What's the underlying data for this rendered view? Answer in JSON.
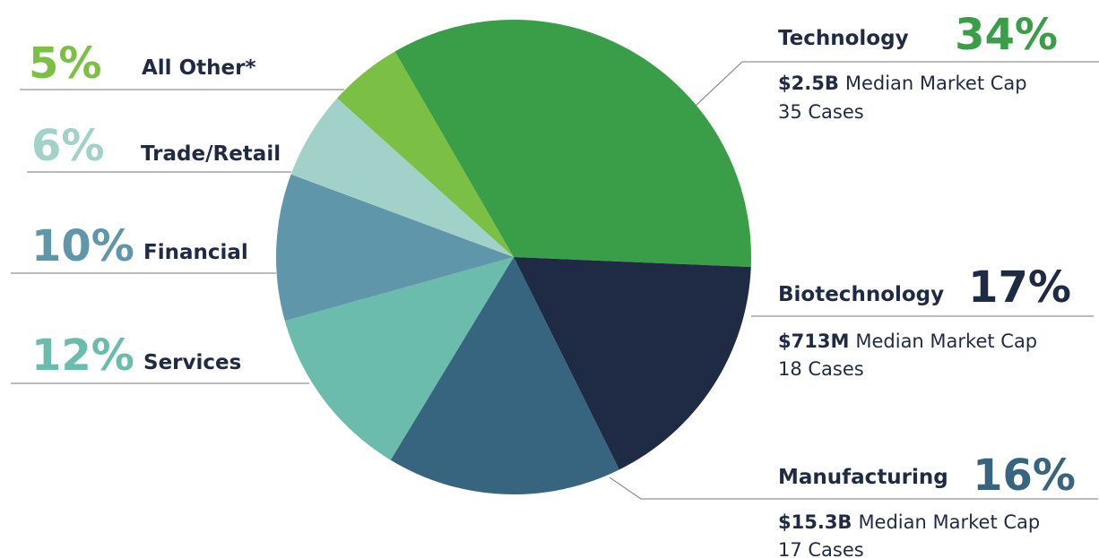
{
  "chart_data": {
    "type": "pie",
    "categories": [
      "Technology",
      "Biotechnology",
      "Manufacturing",
      "Services",
      "Financial",
      "Trade/Retail",
      "All Other*"
    ],
    "values": [
      34,
      17,
      16,
      12,
      10,
      6,
      5
    ],
    "value_labels": [
      "34%",
      "17%",
      "16%",
      "12%",
      "10%",
      "6%",
      "5%"
    ],
    "colors": [
      "#3a9e48",
      "#1f2a44",
      "#37647e",
      "#6bbcad",
      "#6096aa",
      "#a2d1c9",
      "#7bbf44"
    ],
    "details": [
      {
        "market_cap": "$2.5B",
        "market_cap_label": "Median Market Cap",
        "cases": "35 Cases"
      },
      {
        "market_cap": "$713M",
        "market_cap_label": "Median Market Cap",
        "cases": "18 Cases"
      },
      {
        "market_cap": "$15.3B",
        "market_cap_label": "Median Market Cap",
        "cases": "17 Cases"
      }
    ]
  }
}
